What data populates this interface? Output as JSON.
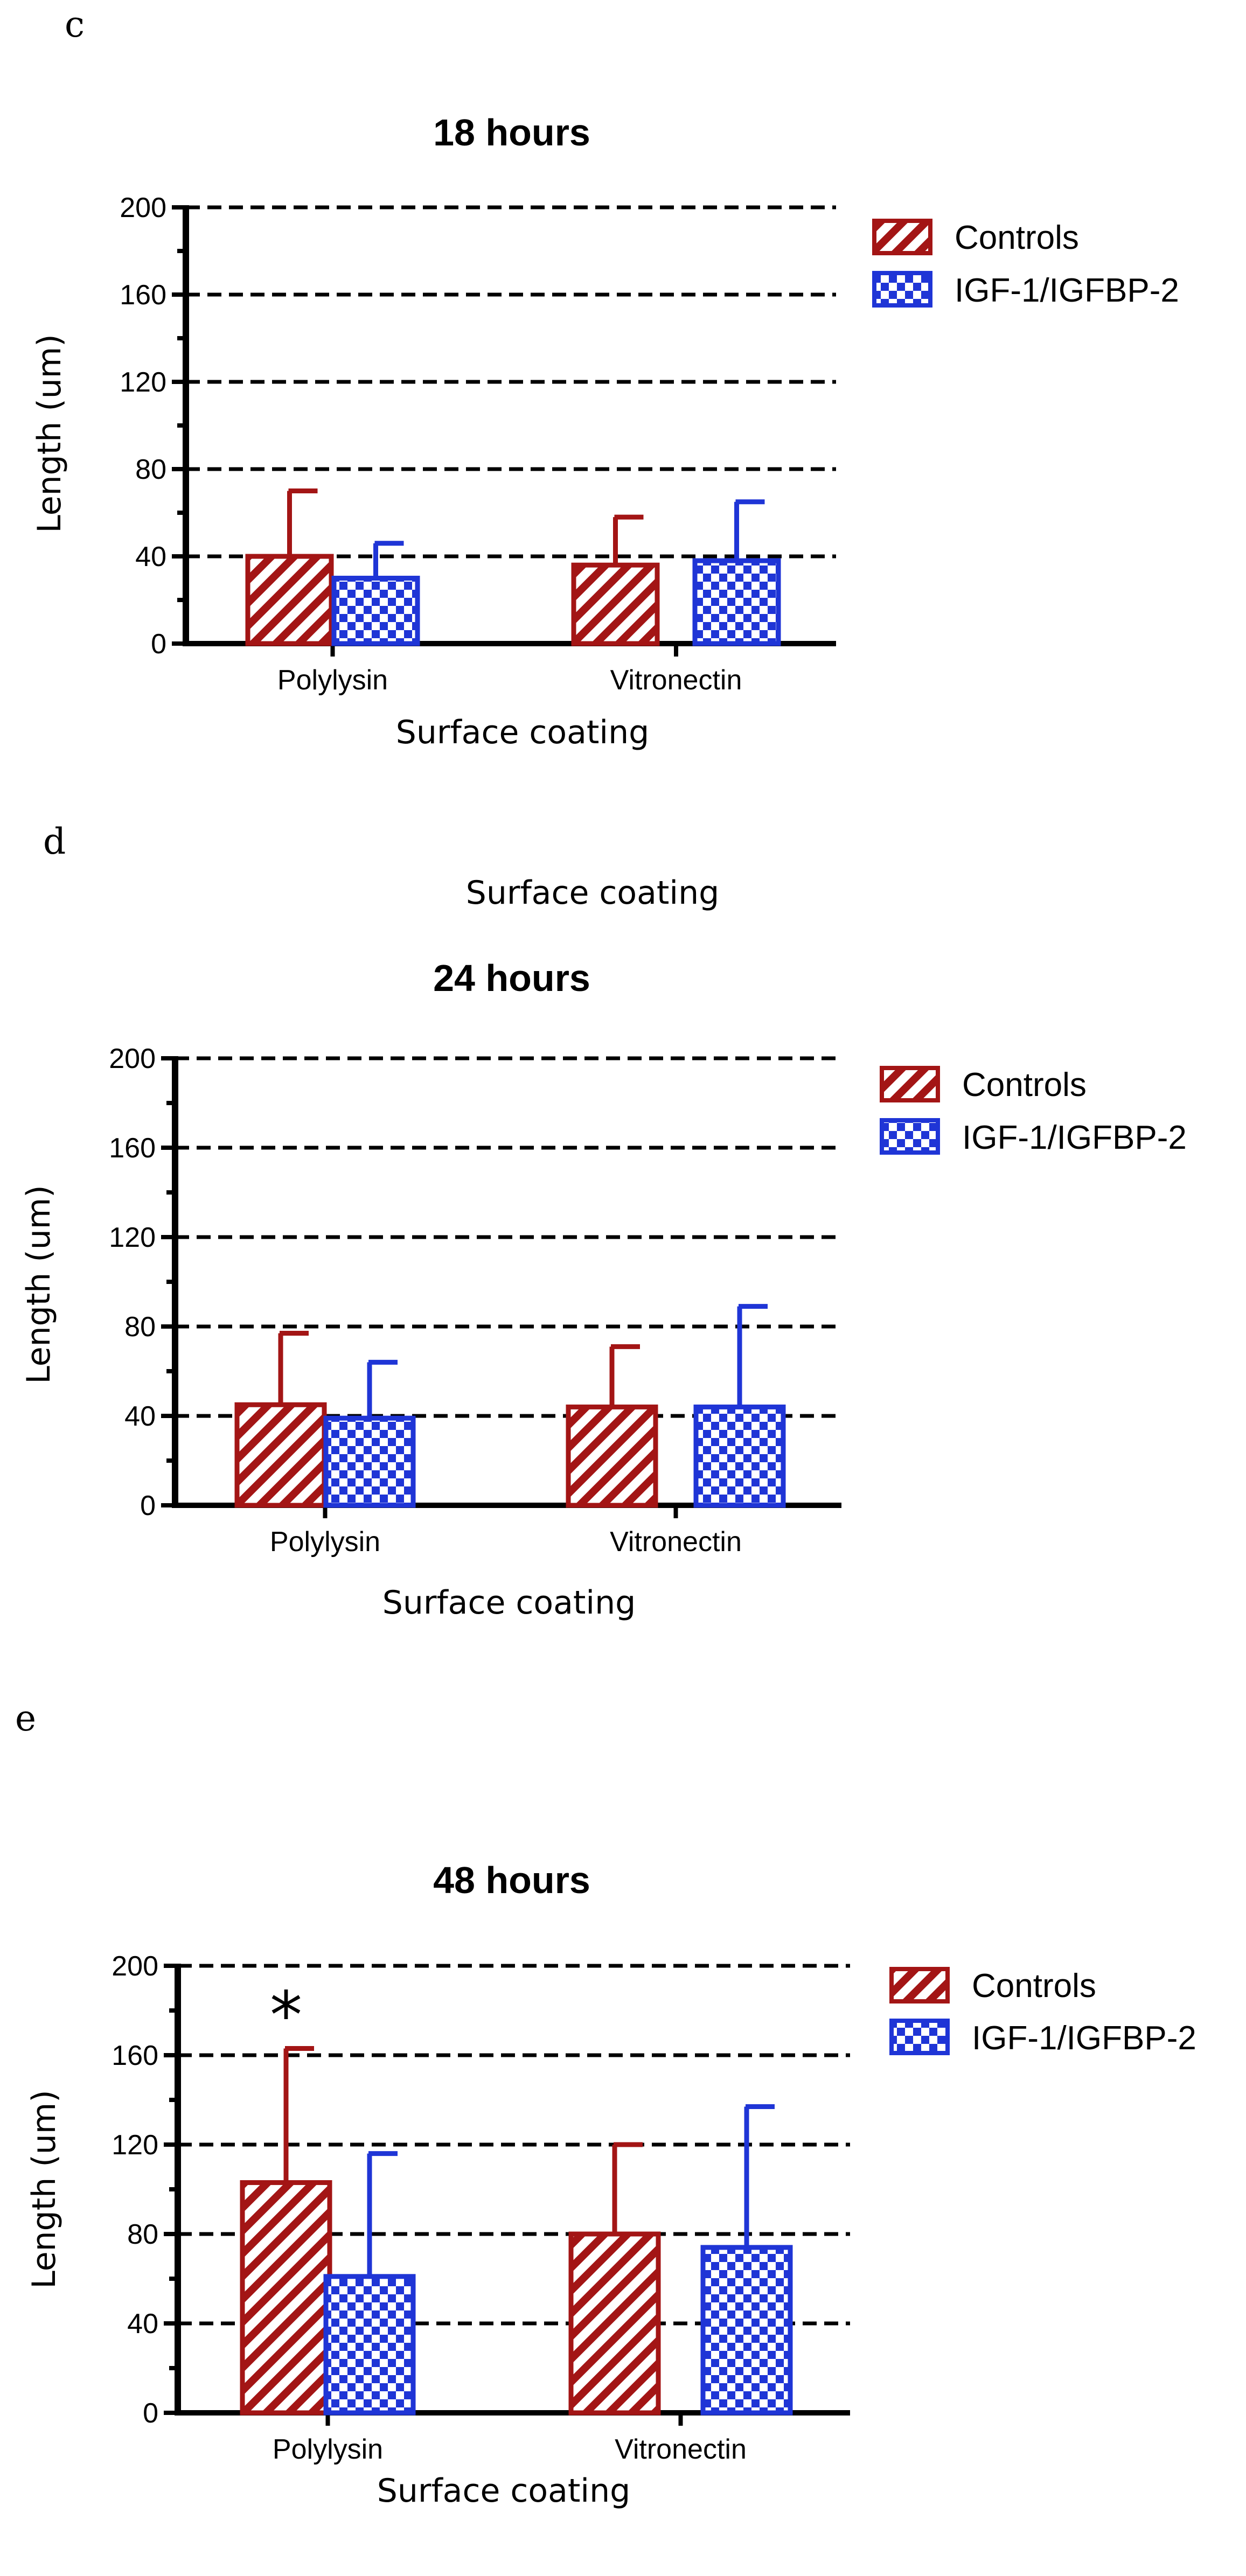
{
  "colors": {
    "controls": "#a31515",
    "treatment": "#1f35d6",
    "axis": "#000000",
    "grid": "#000000"
  },
  "stray_text": "Surface coating",
  "legend": [
    "Controls",
    "IGF-1/IGFBP-2"
  ],
  "chart_data": [
    {
      "panel": "c",
      "type": "bar",
      "title": "18 hours",
      "xlabel": "Surface coating",
      "ylabel": "Length (um)",
      "ylim": [
        0,
        200
      ],
      "yticks": [
        0,
        40,
        80,
        120,
        160,
        200
      ],
      "gridlines": [
        40,
        80,
        120,
        160,
        200
      ],
      "categories": [
        "Polylysin",
        "Vitronectin"
      ],
      "series": [
        {
          "name": "Controls",
          "pattern": "hatch",
          "values": [
            40,
            36
          ],
          "errors": [
            30,
            22
          ]
        },
        {
          "name": "IGF-1/IGFBP-2",
          "pattern": "checker",
          "values": [
            30,
            38
          ],
          "errors": [
            16,
            27
          ]
        }
      ],
      "annotations": []
    },
    {
      "panel": "d",
      "type": "bar",
      "title": "24 hours",
      "xlabel": "Surface coating",
      "ylabel": "Length (um)",
      "ylim": [
        0,
        200
      ],
      "yticks": [
        0,
        40,
        80,
        120,
        160,
        200
      ],
      "gridlines": [
        40,
        80,
        120,
        160,
        200
      ],
      "categories": [
        "Polylysin",
        "Vitronectin"
      ],
      "series": [
        {
          "name": "Controls",
          "pattern": "hatch",
          "values": [
            45,
            44
          ],
          "errors": [
            32,
            27
          ]
        },
        {
          "name": "IGF-1/IGFBP-2",
          "pattern": "checker",
          "values": [
            39,
            44
          ],
          "errors": [
            25,
            45
          ]
        }
      ],
      "annotations": []
    },
    {
      "panel": "e",
      "type": "bar",
      "title": "48 hours",
      "xlabel": "Surface coating",
      "ylabel": "Length (um)",
      "ylim": [
        0,
        200
      ],
      "yticks": [
        0,
        40,
        80,
        120,
        160,
        200
      ],
      "gridlines": [
        40,
        80,
        120,
        160,
        200
      ],
      "categories": [
        "Polylysin",
        "Vitronectin"
      ],
      "series": [
        {
          "name": "Controls",
          "pattern": "hatch",
          "values": [
            103,
            80
          ],
          "errors": [
            60,
            40
          ]
        },
        {
          "name": "IGF-1/IGFBP-2",
          "pattern": "checker",
          "values": [
            61,
            74
          ],
          "errors": [
            55,
            63
          ]
        }
      ],
      "annotations": [
        {
          "text": "*",
          "category": "Polylysin",
          "series": "Controls"
        }
      ]
    }
  ]
}
